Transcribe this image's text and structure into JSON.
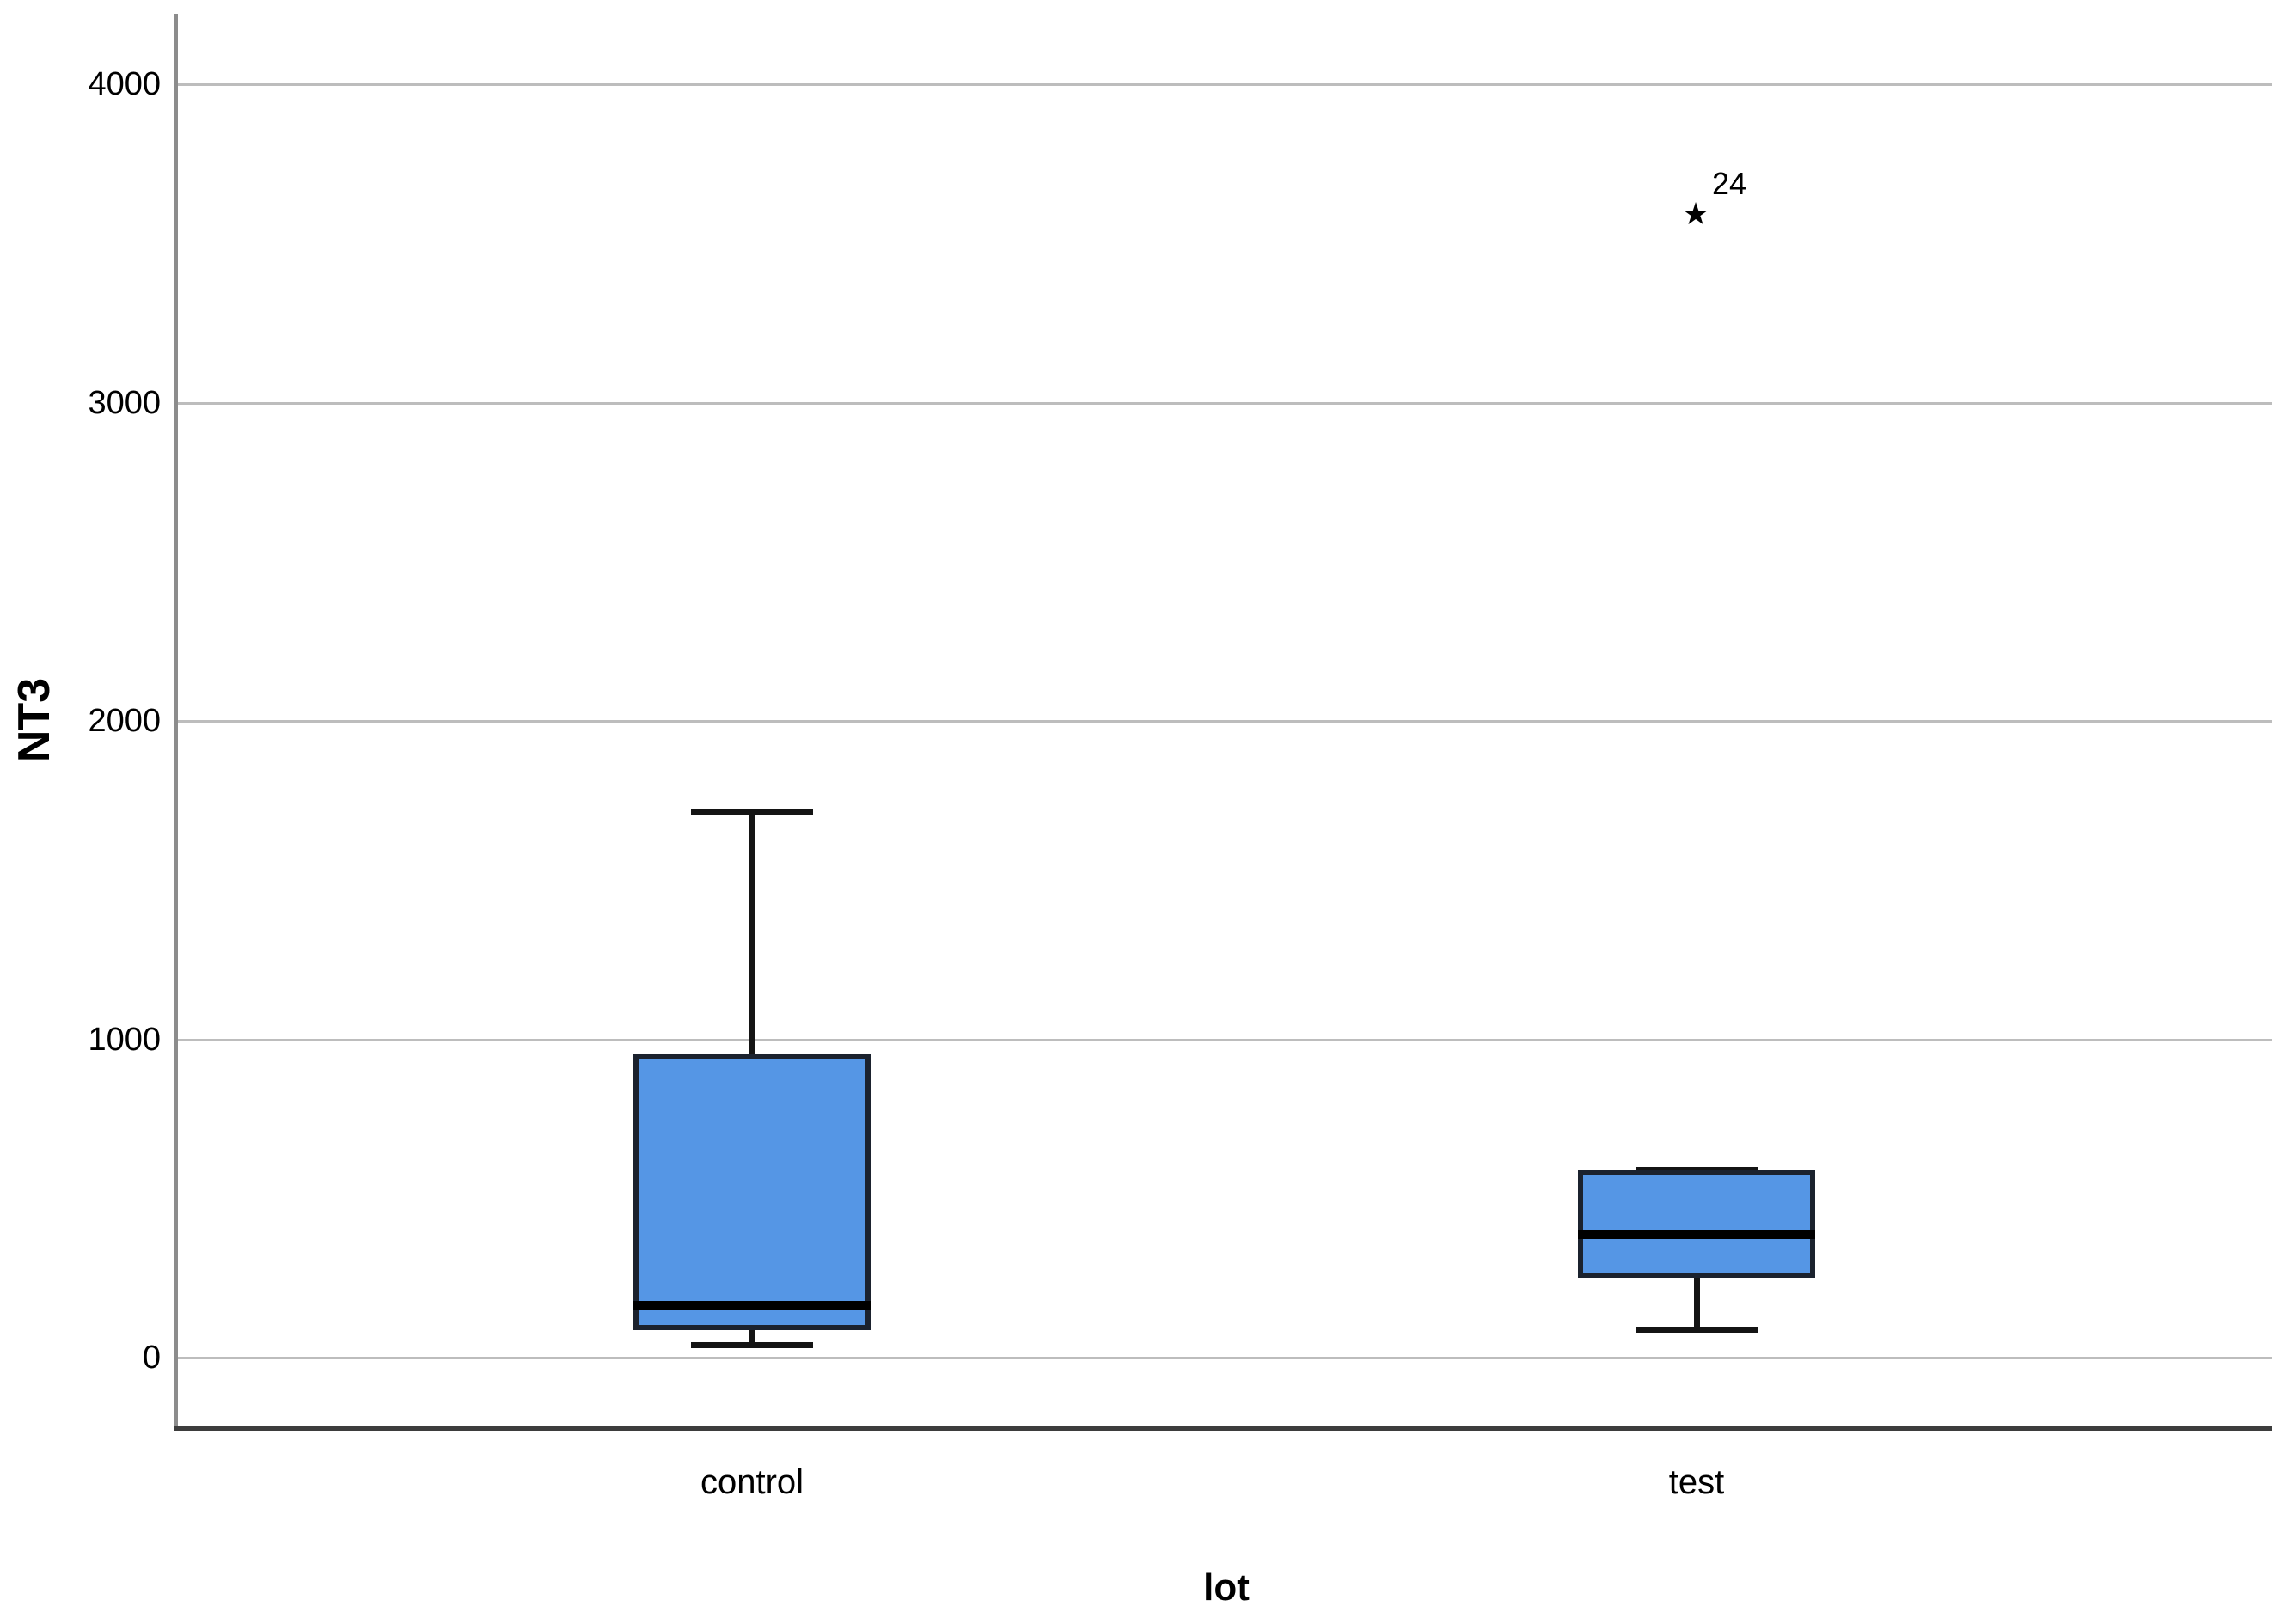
{
  "figure": {
    "background": "#ffffff"
  },
  "chart_data": {
    "type": "boxplot",
    "title": "",
    "xlabel": "lot",
    "ylabel": "NT3",
    "categories": [
      "control",
      "test"
    ],
    "yticks": [
      "0",
      "1000",
      "2000",
      "3000",
      "4000"
    ],
    "ytick_values": [
      0,
      1000,
      2000,
      3000,
      4000
    ],
    "ylim": [
      -225,
      4220
    ],
    "grid": "horizontal-only",
    "legend": "none",
    "series": [
      {
        "category": "control",
        "whisker_low": 40,
        "q1": 95,
        "median": 165,
        "q3": 945,
        "whisker_high": 1715,
        "outliers": []
      },
      {
        "category": "test",
        "whisker_low": 90,
        "q1": 260,
        "median": 390,
        "q3": 580,
        "whisker_high": 590,
        "outliers": [
          {
            "value": 3590,
            "label": "24",
            "symbol": "star-asterisk",
            "symbol_glyph": "★"
          }
        ]
      }
    ],
    "colors": {
      "box_fill": "#5596e5",
      "box_border": "#1b222e",
      "median_line": "#000000",
      "whisker": "#141414",
      "gridline": "#bdbdbd",
      "y_axis_line": "#8c8c8c",
      "x_axis_line": "#3d3d3d",
      "text": "#000000",
      "background": "#ffffff"
    }
  }
}
